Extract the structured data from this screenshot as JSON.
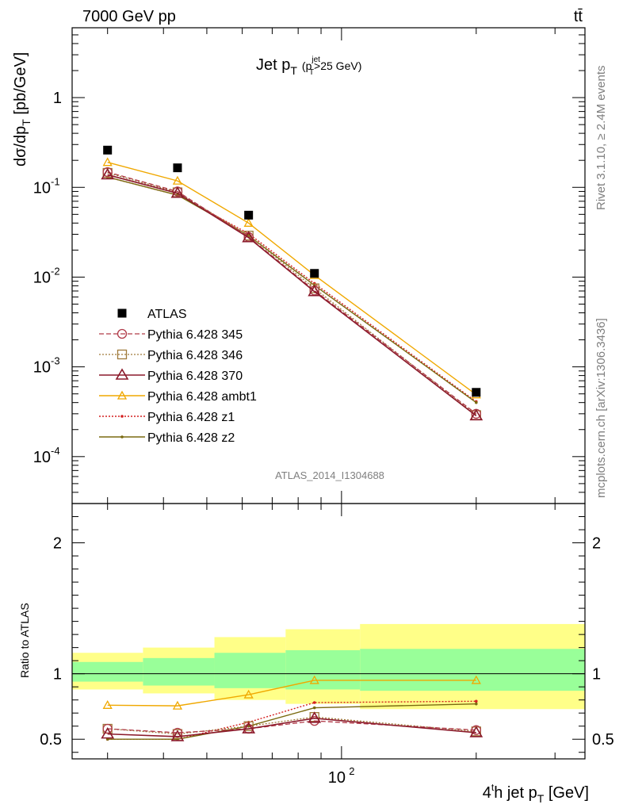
{
  "header": {
    "energy_label": "7000 GeV pp",
    "process_label": "tt̄",
    "plot_title": "Jet p",
    "plot_title_sub": "T",
    "plot_title_cut_open": "(p",
    "plot_title_cut_sup": "jet",
    "plot_title_cut_sub": "T",
    "plot_title_cut_rest": ">25 GeV)",
    "side_rivet": "Rivet 3.1.10, ≥ 2.4M events",
    "side_mcplots": "mcplots.cern.ch [arXiv:1306.3436]",
    "analysis_id": "ATLAS_2014_I1304688"
  },
  "axes": {
    "ylabel_main": "dσ/dp",
    "ylabel_main_sub": "T",
    "ylabel_main_units": " [pb/GeV]",
    "ylabel_ratio": "Ratio to ATLAS",
    "xlabel_pre": "4",
    "xlabel_sup": "t",
    "xlabel_mid": "h jet p",
    "xlabel_sub": "T",
    "xlabel_post": " [GeV]",
    "main_ytick_labels": [
      "10",
      "10",
      "10",
      "10",
      "1"
    ],
    "main_ytick_exps": [
      "-4",
      "-3",
      "-2",
      "-1",
      ""
    ],
    "ratio_ytick_labels": [
      "0.5",
      "1",
      "2"
    ],
    "xtick_label": "10",
    "xtick_exp": "2"
  },
  "colors": {
    "data": "#000000",
    "p345": "#b03a48",
    "p346": "#a07a3a",
    "p370": "#8b1a2b",
    "ambt1": "#f0a800",
    "z1": "#d42020",
    "z2": "#7a6a10",
    "band_inner": "#99ff99",
    "band_outer": "#ffff88"
  },
  "legend": [
    {
      "name": "ATLAS",
      "key": "data"
    },
    {
      "name": "Pythia 6.428 345",
      "key": "p345"
    },
    {
      "name": "Pythia 6.428 346",
      "key": "p346"
    },
    {
      "name": "Pythia 6.428 370",
      "key": "p370"
    },
    {
      "name": "Pythia 6.428 ambt1",
      "key": "ambt1"
    },
    {
      "name": "Pythia 6.428 z1",
      "key": "z1"
    },
    {
      "name": "Pythia 6.428 z2",
      "key": "z2"
    }
  ],
  "chart_data": [
    {
      "type": "scatter",
      "xscale": "log",
      "yscale": "log",
      "xlim": [
        25,
        350
      ],
      "ylim": [
        3e-05,
        6
      ],
      "xlabel": "4th jet pT [GeV]",
      "ylabel": "dσ/dpT [pb/GeV]",
      "x": [
        30,
        43,
        62,
        87,
        200
      ],
      "series": [
        {
          "name": "ATLAS",
          "values": [
            0.26,
            0.165,
            0.049,
            0.011,
            0.00052
          ]
        },
        {
          "name": "Pythia 6.428 345",
          "values": [
            0.148,
            0.09,
            0.028,
            0.0071,
            0.0003
          ]
        },
        {
          "name": "Pythia 6.428 346",
          "values": [
            0.145,
            0.088,
            0.029,
            0.0075,
            0.00029
          ]
        },
        {
          "name": "Pythia 6.428 370",
          "values": [
            0.138,
            0.086,
            0.0275,
            0.0069,
            0.000285
          ]
        },
        {
          "name": "Pythia 6.428 ambt1",
          "values": [
            0.19,
            0.118,
            0.04,
            0.0105,
            0.00049
          ]
        },
        {
          "name": "Pythia 6.428 z1",
          "values": [
            0.13,
            0.082,
            0.0305,
            0.0085,
            0.00041
          ]
        },
        {
          "name": "Pythia 6.428 z2",
          "values": [
            0.13,
            0.082,
            0.029,
            0.0081,
            0.0004
          ]
        }
      ]
    },
    {
      "type": "line",
      "xscale": "log",
      "xlim": [
        25,
        350
      ],
      "ylim": [
        0.35,
        2.3
      ],
      "ylabel": "Ratio to ATLAS",
      "x": [
        30,
        43,
        62,
        87,
        200
      ],
      "bands": {
        "edges": [
          25,
          36,
          52,
          75,
          110,
          350
        ],
        "inner_low": [
          0.94,
          0.91,
          0.89,
          0.88,
          0.87
        ],
        "inner_high": [
          1.09,
          1.12,
          1.16,
          1.18,
          1.19
        ],
        "outer_low": [
          0.88,
          0.85,
          0.8,
          0.77,
          0.73
        ],
        "outer_high": [
          1.16,
          1.2,
          1.28,
          1.34,
          1.38
        ]
      },
      "series": [
        {
          "name": "Pythia 6.428 345",
          "values": [
            0.58,
            0.55,
            0.58,
            0.64,
            0.57
          ]
        },
        {
          "name": "Pythia 6.428 346",
          "values": [
            0.58,
            0.54,
            0.6,
            0.67,
            0.56
          ]
        },
        {
          "name": "Pythia 6.428 370",
          "values": [
            0.54,
            0.52,
            0.58,
            0.66,
            0.55
          ]
        },
        {
          "name": "Pythia 6.428 ambt1",
          "values": [
            0.76,
            0.755,
            0.84,
            0.95,
            0.95
          ]
        },
        {
          "name": "Pythia 6.428 z1",
          "values": [
            0.5,
            0.5,
            0.63,
            0.78,
            0.79
          ]
        },
        {
          "name": "Pythia 6.428 z2",
          "values": [
            0.5,
            0.5,
            0.6,
            0.74,
            0.77
          ]
        }
      ]
    }
  ]
}
